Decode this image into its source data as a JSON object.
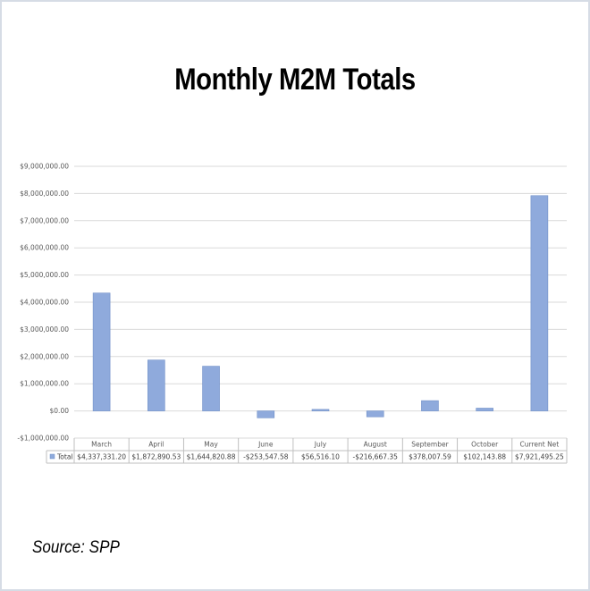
{
  "title": "Monthly M2M Totals",
  "source": "Source: SPP",
  "chart_data": {
    "type": "bar",
    "title": "Monthly M2M Totals",
    "categories": [
      "March",
      "April",
      "May",
      "June",
      "July",
      "August",
      "September",
      "October",
      "Current Net"
    ],
    "series": [
      {
        "name": "Total",
        "values": [
          4337331.2,
          1872890.53,
          1644820.88,
          -253547.58,
          56516.1,
          -216667.35,
          378007.59,
          102143.88,
          7921495.25
        ],
        "labels": [
          "$4,337,331.20",
          "$1,872,890.53",
          "$1,644,820.88",
          "-$253,547.58",
          "$56,516.10",
          "-$216,667.35",
          "$378,007.59",
          "$102,143.88",
          "$7,921,495.25"
        ]
      }
    ],
    "y_ticks": [
      -1000000,
      0,
      1000000,
      2000000,
      3000000,
      4000000,
      5000000,
      6000000,
      7000000,
      8000000,
      9000000
    ],
    "y_tick_labels": [
      "-$1,000,000.00",
      "$0.00",
      "$1,000,000.00",
      "$2,000,000.00",
      "$3,000,000.00",
      "$4,000,000.00",
      "$5,000,000.00",
      "$6,000,000.00",
      "$7,000,000.00",
      "$8,000,000.00",
      "$9,000,000.00"
    ],
    "ylim": [
      -1000000,
      9000000
    ],
    "grid": true,
    "data_table": true,
    "colors": {
      "bar": "#8faadc",
      "bar_edge": "#6f8fc8",
      "grid": "#d9d9d9",
      "table_border": "#bfbfbf"
    }
  }
}
